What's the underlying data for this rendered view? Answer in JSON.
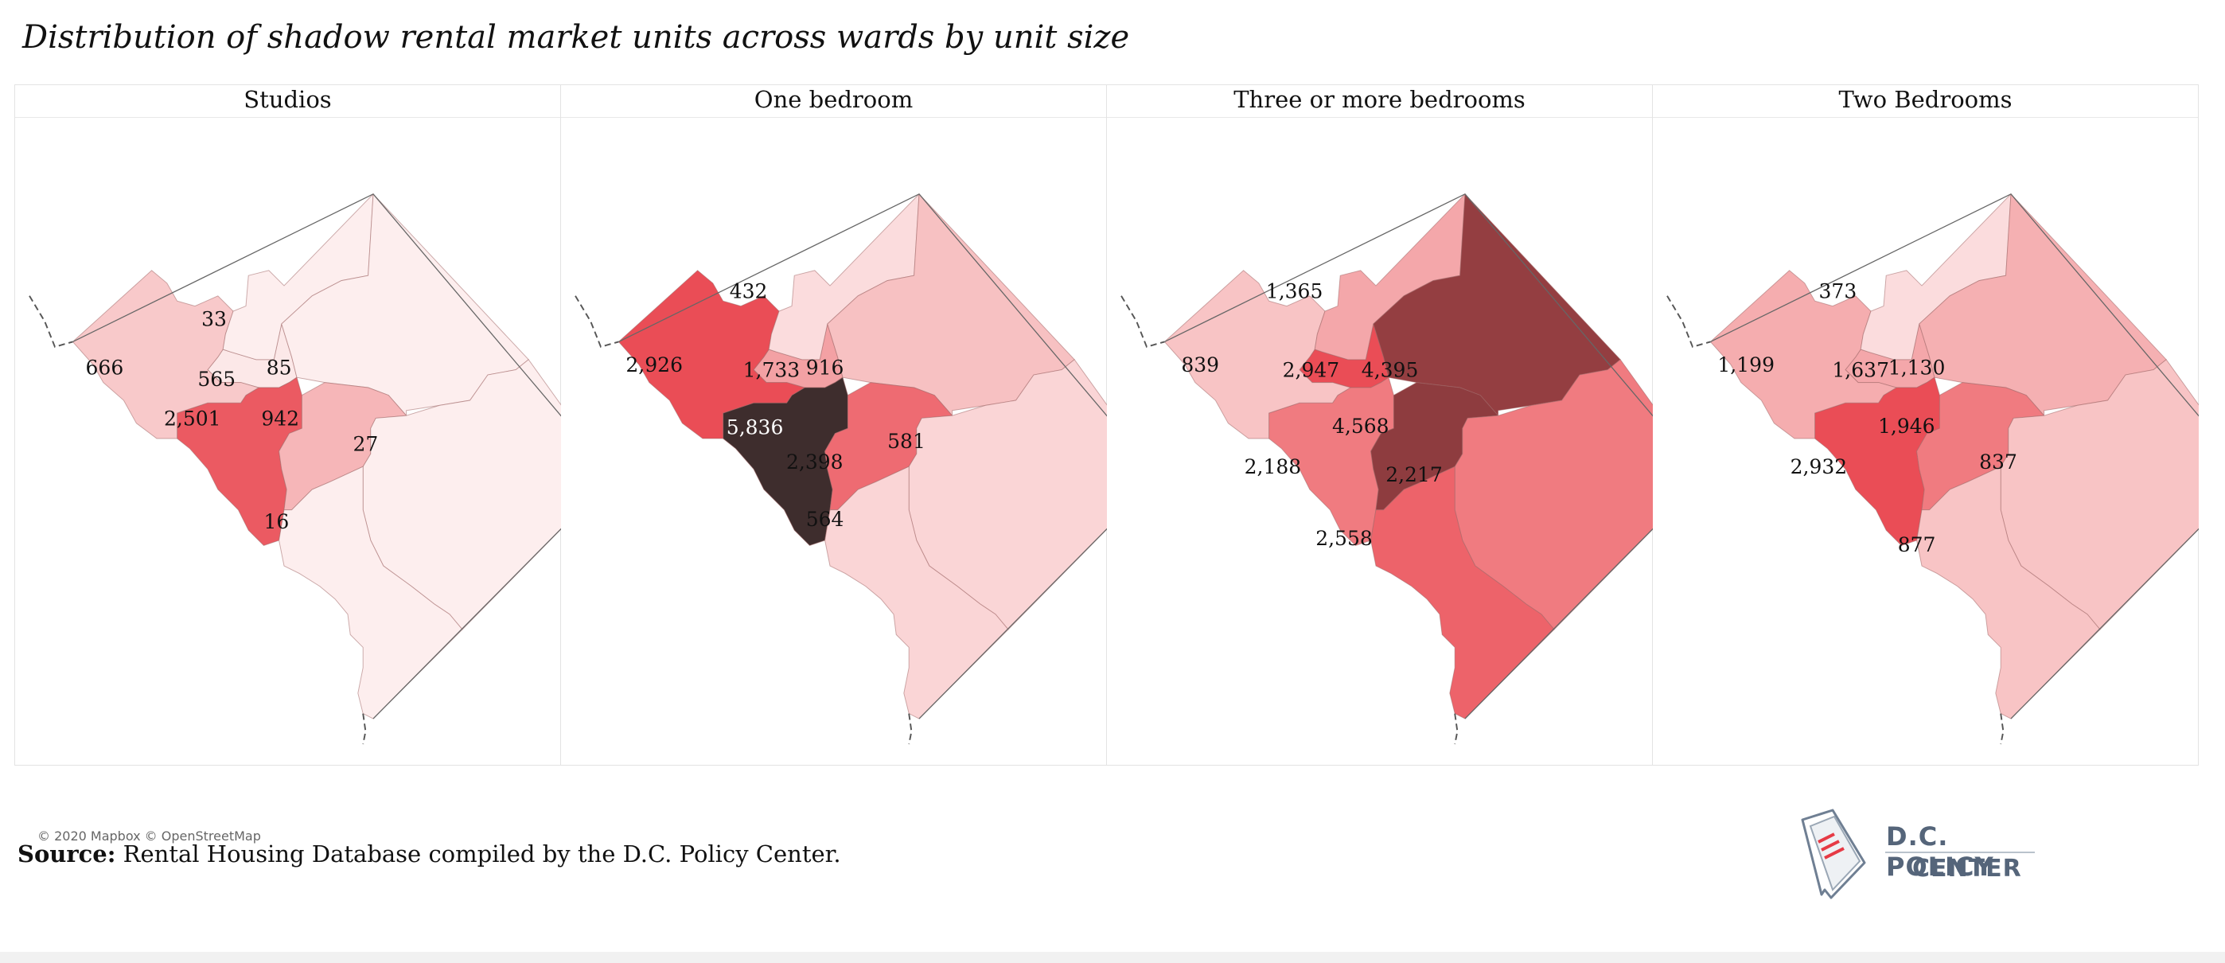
{
  "title": "Distribution of shadow rental market units across wards by unit size",
  "attribution": "© 2020 Mapbox © OpenStreetMap",
  "source_label": "Source:",
  "source_text": " Rental Housing Database compiled by the D.C. Policy Center.",
  "logo": {
    "line1": "D.C. POLICY",
    "line2": "CENTER",
    "icon": "dc-map-document-icon"
  },
  "color_scale": {
    "min_color": "#fce9e9",
    "mid_color": "#e84c55",
    "max_color": "#3b2b2b"
  },
  "panels": [
    {
      "title": "Studios",
      "wards": [
        {
          "ward": 1,
          "value": "565",
          "color": "#fce8e8"
        },
        {
          "ward": 2,
          "value": "2,501",
          "color": "#eb5a62"
        },
        {
          "ward": 3,
          "value": "666",
          "color": "#f8c9ca"
        },
        {
          "ward": 4,
          "value": "33",
          "color": "#fdeeee"
        },
        {
          "ward": 5,
          "value": "85",
          "color": "#fdeeee"
        },
        {
          "ward": 6,
          "value": "942",
          "color": "#f6b6b8"
        },
        {
          "ward": 7,
          "value": "27",
          "color": "#fdeeee"
        },
        {
          "ward": 8,
          "value": "16",
          "color": "#fdeeee"
        }
      ]
    },
    {
      "title": "One bedroom",
      "wards": [
        {
          "ward": 1,
          "value": "1,733",
          "color": "#f3a1a4"
        },
        {
          "ward": 2,
          "value": "5,836",
          "color": "#3e2d2d"
        },
        {
          "ward": 3,
          "value": "2,926",
          "color": "#ea4d56"
        },
        {
          "ward": 4,
          "value": "432",
          "color": "#fbdcdd"
        },
        {
          "ward": 5,
          "value": "916",
          "color": "#f7c1c2"
        },
        {
          "ward": 6,
          "value": "2,398",
          "color": "#ee6b72"
        },
        {
          "ward": 7,
          "value": "581",
          "color": "#fad5d6"
        },
        {
          "ward": 8,
          "value": "564",
          "color": "#fad5d6"
        }
      ]
    },
    {
      "title": "Three or more bedrooms",
      "wards": [
        {
          "ward": 1,
          "value": "2,947",
          "color": "#ea4d56"
        },
        {
          "ward": 2,
          "value": "2,188",
          "color": "#f07b80"
        },
        {
          "ward": 3,
          "value": "839",
          "color": "#f8c4c5"
        },
        {
          "ward": 4,
          "value": "1,365",
          "color": "#f4a7aa"
        },
        {
          "ward": 5,
          "value": "4,395",
          "color": "#943e41"
        },
        {
          "ward": 6,
          "value": "4,568",
          "color": "#8e3c3f"
        },
        {
          "ward": 7,
          "value": "2,217",
          "color": "#f07b80"
        },
        {
          "ward": 8,
          "value": "2,558",
          "color": "#ed636a"
        }
      ]
    },
    {
      "title": "Two Bedrooms",
      "wards": [
        {
          "ward": 1,
          "value": "1,637",
          "color": "#f4a7aa"
        },
        {
          "ward": 2,
          "value": "2,932",
          "color": "#ea4d56"
        },
        {
          "ward": 3,
          "value": "1,199",
          "color": "#f5adaf"
        },
        {
          "ward": 4,
          "value": "373",
          "color": "#fbdcdd"
        },
        {
          "ward": 5,
          "value": "1,130",
          "color": "#f5b0b2"
        },
        {
          "ward": 6,
          "value": "1,946",
          "color": "#f07b80"
        },
        {
          "ward": 7,
          "value": "837",
          "color": "#f8c4c5"
        },
        {
          "ward": 8,
          "value": "877",
          "color": "#f8c4c5"
        }
      ]
    }
  ]
}
